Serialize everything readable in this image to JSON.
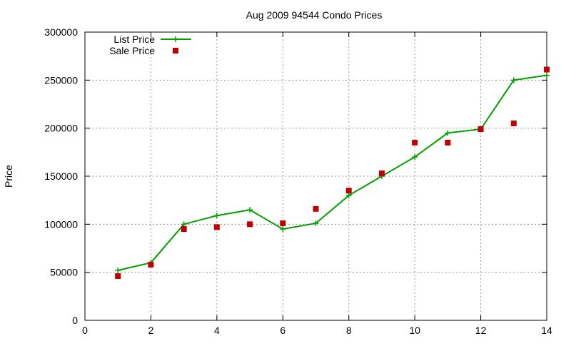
{
  "chart_data": {
    "type": "line",
    "title": "Aug 2009 94544 Condo Prices",
    "xlabel": "",
    "ylabel": "Price",
    "xlim": [
      0,
      14
    ],
    "ylim": [
      0,
      300000
    ],
    "x_ticks": [
      0,
      2,
      4,
      6,
      8,
      10,
      12,
      14
    ],
    "y_ticks": [
      0,
      50000,
      100000,
      150000,
      200000,
      250000,
      300000
    ],
    "grid": true,
    "legend_position": "top-left",
    "series": [
      {
        "name": "List Price",
        "kind": "line-with-markers",
        "marker": "plus",
        "color": "#00a000",
        "x": [
          1,
          2,
          3,
          4,
          5,
          6,
          7,
          8,
          9,
          10,
          11,
          12,
          13,
          14
        ],
        "y": [
          52000,
          60000,
          100000,
          109000,
          115000,
          95000,
          101000,
          130000,
          150000,
          170000,
          195000,
          199000,
          250000,
          255000
        ]
      },
      {
        "name": "Sale Price",
        "kind": "points",
        "marker": "square",
        "color": "#c00000",
        "x": [
          1,
          2,
          3,
          4,
          5,
          6,
          7,
          8,
          9,
          10,
          11,
          12,
          13,
          14
        ],
        "y": [
          46000,
          58000,
          95000,
          97000,
          100000,
          101000,
          116000,
          135000,
          153000,
          185000,
          185000,
          199000,
          205000,
          261000
        ]
      }
    ]
  }
}
